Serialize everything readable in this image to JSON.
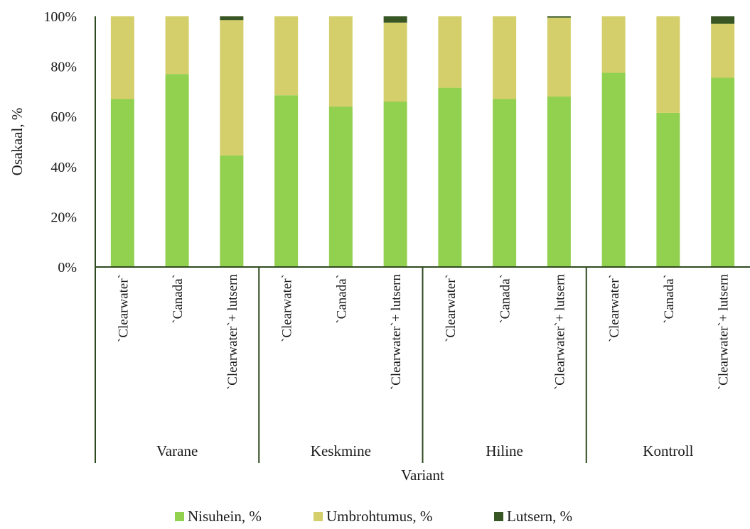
{
  "chart_data": {
    "type": "bar",
    "stacked": "percent",
    "ylabel": "Osakaal, %",
    "xlabel": "Variant",
    "ylim": [
      0,
      100
    ],
    "yticks": [
      "0%",
      "20%",
      "40%",
      "60%",
      "80%",
      "100%"
    ],
    "grid": false,
    "legend_position": "bottom",
    "groups": [
      {
        "name": "Varane",
        "categories": [
          "`Clearwater`",
          "`Canada`",
          "`Clearwater`+ lutsern"
        ]
      },
      {
        "name": "Keskmine",
        "categories": [
          "`Clearwater`",
          "`Canada`",
          "`Clearwater`+ lutsern"
        ]
      },
      {
        "name": "Hiline",
        "categories": [
          "`Clearwater`",
          "`Canada`",
          "`Clearwater`+ lutsern"
        ]
      },
      {
        "name": "Kontroll",
        "categories": [
          "`Clearwater`",
          "`Canada`",
          "`Clearwater`+ lutsern"
        ]
      }
    ],
    "series": [
      {
        "name": "Nisuhein, %",
        "color": "#92d050",
        "values": [
          67,
          77,
          44.5,
          68.5,
          64,
          66,
          71.5,
          67,
          68,
          77.5,
          61.5,
          75.5
        ]
      },
      {
        "name": "Umbrohtumus, %",
        "color": "#d4cf6a",
        "values": [
          33,
          23,
          54,
          31.5,
          36,
          31.5,
          28.5,
          33,
          31.5,
          22.5,
          38.5,
          21.5
        ]
      },
      {
        "name": "Lutsern, %",
        "color": "#375623",
        "values": [
          0,
          0,
          1.5,
          0,
          0,
          2.5,
          0,
          0,
          0.5,
          0,
          0,
          3
        ]
      }
    ]
  }
}
